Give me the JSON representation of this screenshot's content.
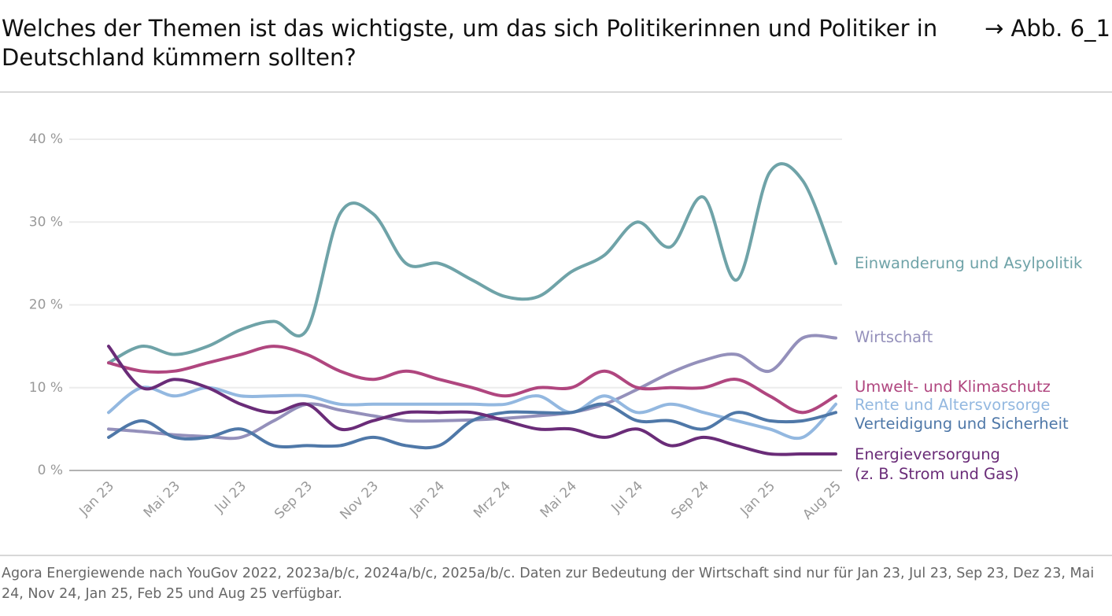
{
  "chart_data": {
    "type": "line",
    "title": "Welches der Themen ist das wichtigste, um das sich Politikerinnen und Politiker in Deutschland kümmern sollten?",
    "annotation": "→ Abb. 6_1",
    "source": "Agora Energiewende nach YouGov 2022, 2023a/b/c, 2024a/b/c, 2025a/b/c. Daten zur Bedeutung der Wirtschaft sind nur für Jan 23, Jul 23, Sep 23, Dez 23, Mai 24, Nov 24, Jan 25, Feb 25 und Aug 25 verfügbar.",
    "categories": [
      "Jan 23",
      null,
      "Mai 23",
      null,
      "Jul 23",
      null,
      "Sep 23",
      null,
      "Nov 23",
      null,
      "Jan 24",
      null,
      "Mrz 24",
      null,
      "Mai 24",
      null,
      "Jul 24",
      null,
      "Sep 24",
      null,
      "Jan 25",
      null,
      "Aug 25"
    ],
    "ylim": [
      0,
      40
    ],
    "yticks": [
      {
        "value": 0,
        "label": "0 %"
      },
      {
        "value": 10,
        "label": "10 %"
      },
      {
        "value": 20,
        "label": "20 %"
      },
      {
        "value": 30,
        "label": "30 %"
      },
      {
        "value": 40,
        "label": "40 %"
      }
    ],
    "grid": true,
    "series": [
      {
        "name": "Einwanderung und Asylpolitik",
        "color": "#6fa3a8",
        "values": [
          13,
          15,
          14,
          15,
          17,
          18,
          17,
          31,
          31,
          25,
          25,
          23,
          21,
          21,
          24,
          26,
          30,
          27,
          33,
          23,
          36,
          35,
          25
        ]
      },
      {
        "name": "Wirtschaft",
        "color": "#9490bb",
        "values": [
          5,
          4.7,
          4.3,
          4.1,
          4,
          6,
          8,
          7.3,
          6.6,
          6,
          6,
          6.1,
          6.3,
          6.6,
          7,
          8,
          9.8,
          11.8,
          13.3,
          14,
          12,
          16,
          16
        ]
      },
      {
        "name": "Umwelt- und Klimaschutz",
        "color": "#b0467f",
        "values": [
          13,
          12,
          12,
          13,
          14,
          15,
          14,
          12,
          11,
          12,
          11,
          10,
          9,
          10,
          10,
          12,
          10,
          10,
          10,
          11,
          9,
          7,
          9
        ]
      },
      {
        "name": "Rente und Altersvorsorge",
        "color": "#93b8e0",
        "values": [
          7,
          10,
          9,
          10,
          9,
          9,
          9,
          8,
          8,
          8,
          8,
          8,
          8,
          9,
          7,
          9,
          7,
          8,
          7,
          6,
          5,
          4,
          8
        ]
      },
      {
        "name": "Verteidigung und Sicherheit",
        "color": "#4f78a8",
        "values": [
          4,
          6,
          4,
          4,
          5,
          3,
          3,
          3,
          4,
          3,
          3,
          6,
          7,
          7,
          7,
          8,
          6,
          6,
          5,
          7,
          6,
          6,
          7
        ]
      },
      {
        "name": "Energieversorgung\n(z. B. Strom und Gas)",
        "color": "#6a2c78",
        "values": [
          15,
          10,
          11,
          10,
          8,
          7,
          8,
          5,
          6,
          7,
          7,
          7,
          6,
          5,
          5,
          4,
          5,
          3,
          4,
          3,
          2,
          2,
          2
        ]
      }
    ]
  }
}
